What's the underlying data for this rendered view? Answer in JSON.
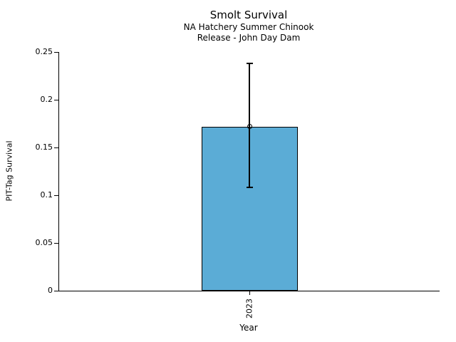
{
  "chart_data": {
    "type": "bar",
    "title": "Smolt Survival",
    "subtitle": [
      "NA Hatchery Summer Chinook",
      "Release - John Day Dam"
    ],
    "xlabel": "Year",
    "ylabel": "PIT-Tag Survival",
    "categories": [
      "2023"
    ],
    "values": [
      0.172
    ],
    "error_low": [
      0.108
    ],
    "error_high": [
      0.238
    ],
    "ylim": [
      0,
      0.25
    ],
    "yticks": [
      0,
      0.05,
      0.1,
      0.15,
      0.2,
      0.25
    ],
    "ytick_labels": [
      "0",
      "0.05",
      "0.1",
      "0.15",
      "0.2",
      "0.25"
    ],
    "grid": false,
    "legend": "none",
    "marker": "open-circle",
    "bar_color": "#5BACD6",
    "bar_edge_color": "#000000",
    "error_color": "#000000",
    "text_color": "#000000"
  }
}
